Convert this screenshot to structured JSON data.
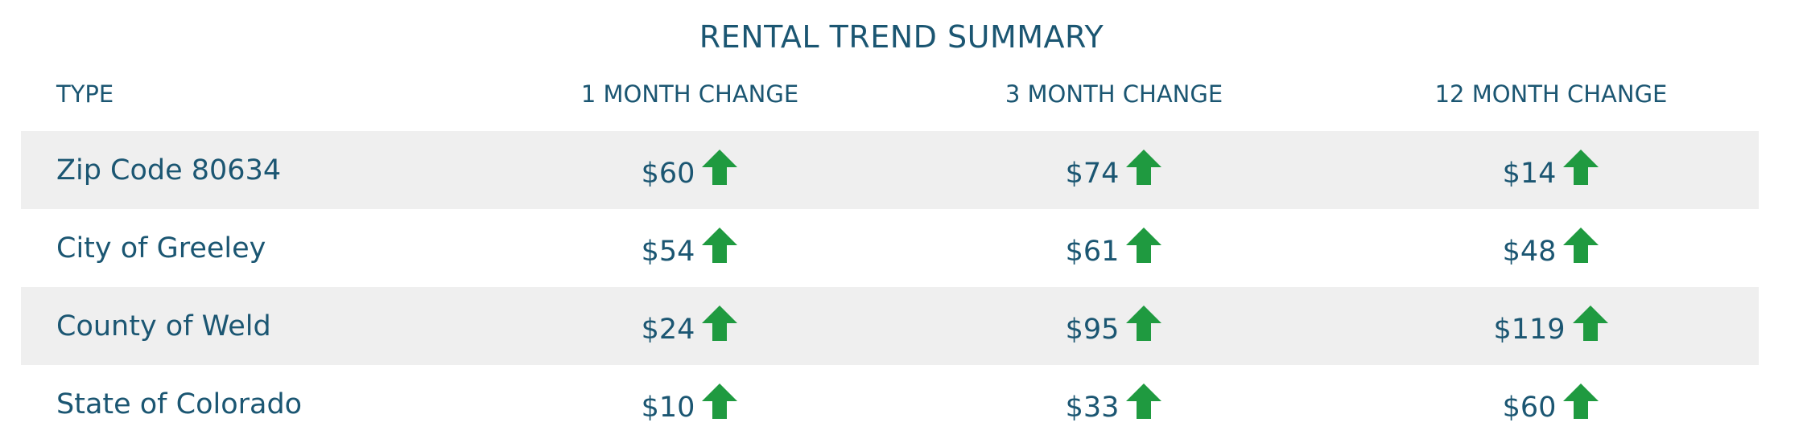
{
  "header": {
    "title": "RENTAL TREND SUMMARY"
  },
  "table": {
    "columns": [
      "TYPE",
      "1 MONTH CHANGE",
      "3 MONTH CHANGE",
      "12 MONTH CHANGE"
    ],
    "rows": [
      [
        "Zip Code 80634",
        "$60",
        "$74",
        "$14"
      ],
      [
        "City of Greeley",
        "$54",
        "$61",
        "$48"
      ],
      [
        "County of Weld",
        "$24",
        "$95",
        "$119"
      ],
      [
        "State of Colorado",
        "$10",
        "$33",
        "$60"
      ]
    ]
  }
}
